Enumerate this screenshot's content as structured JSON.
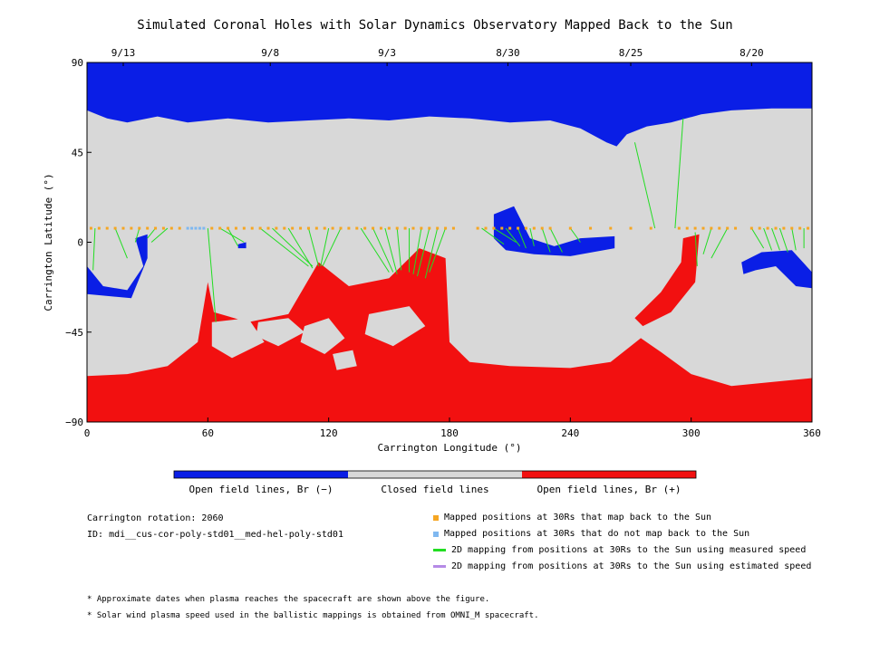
{
  "title": "Simulated Coronal Holes with Solar Dynamics Observatory Mapped Back to the Sun",
  "colors": {
    "open_negative": "#0a1ee6",
    "closed": "#d8d8d8",
    "open_positive": "#f21010",
    "mapped_dot": "#f5a623",
    "unmapped_dot": "#7fb8f0",
    "measured_line": "#22dd22",
    "estimated_line": "#b58ae6"
  },
  "colorbar": {
    "labels": [
      "Open field lines, Br (−)",
      "Closed field lines",
      "Open field lines, Br (+)"
    ]
  },
  "info": {
    "rotation": "Carrington rotation: 2060",
    "id": "ID: mdi__cus-cor-poly-std01__med-hel-poly-std01"
  },
  "legend": [
    {
      "marker": "dot",
      "color": "#f5a623",
      "label": "Mapped positions at 30Rs that map back to the Sun"
    },
    {
      "marker": "dot",
      "color": "#7fb8f0",
      "label": "Mapped positions at 30Rs that do not map back to the Sun"
    },
    {
      "marker": "line",
      "color": "#22dd22",
      "label": "2D mapping from positions at 30Rs to the Sun using measured speed"
    },
    {
      "marker": "line",
      "color": "#b58ae6",
      "label": "2D mapping from positions at 30Rs to the Sun using estimated speed"
    }
  ],
  "notes": [
    "* Approximate dates when plasma reaches the spacecraft are shown above the figure.",
    "* Solar wind plasma speed used in the ballistic mappings is obtained from OMNI_M spacecraft."
  ],
  "chart_data": {
    "type": "heatmap",
    "title": "Simulated Coronal Holes with Solar Dynamics Observatory Mapped Back to the Sun",
    "xlabel": "Carrington Longitude (°)",
    "ylabel": "Carrington Latitude (°)",
    "xlim": [
      0,
      360
    ],
    "ylim": [
      -90,
      90
    ],
    "x_ticks": [
      0,
      60,
      120,
      180,
      240,
      300,
      360
    ],
    "y_ticks": [
      90,
      45,
      0,
      -45,
      -90
    ],
    "y_tick_labels": [
      "90",
      "45",
      "0",
      "−45",
      "−90"
    ],
    "top_axis_dates": [
      {
        "label": "9/13",
        "lon": 18
      },
      {
        "label": "9/8",
        "lon": 91
      },
      {
        "label": "9/3",
        "lon": 149
      },
      {
        "label": "8/30",
        "lon": 209
      },
      {
        "label": "8/25",
        "lon": 270
      },
      {
        "label": "8/20",
        "lon": 330
      }
    ],
    "mapped_point_latitude": 7,
    "mapped_point_longitudes": [
      2,
      6,
      10,
      14,
      18,
      22,
      26,
      30,
      34,
      38,
      42,
      46,
      62,
      66,
      70,
      74,
      78,
      82,
      86,
      90,
      94,
      98,
      102,
      106,
      110,
      114,
      118,
      122,
      126,
      130,
      134,
      138,
      142,
      146,
      150,
      154,
      158,
      162,
      166,
      170,
      174,
      178,
      182,
      194,
      198,
      202,
      206,
      210,
      214,
      218,
      222,
      226,
      230,
      240,
      250,
      260,
      270,
      280,
      294,
      298,
      302,
      306,
      310,
      314,
      318,
      322,
      330,
      334,
      338,
      342,
      346,
      350,
      354,
      358
    ],
    "unmapped_point_longitudes": [
      50,
      52,
      54,
      56,
      58
    ],
    "mapping_lines_measured": [
      [
        4,
        7,
        3,
        -14
      ],
      [
        14,
        7,
        20,
        -8
      ],
      [
        26,
        7,
        24,
        0
      ],
      [
        34,
        7,
        30,
        2
      ],
      [
        40,
        7,
        32,
        0
      ],
      [
        60,
        7,
        64,
        -40
      ],
      [
        66,
        7,
        78,
        0
      ],
      [
        70,
        7,
        75,
        -2
      ],
      [
        86,
        7,
        110,
        -12
      ],
      [
        92,
        7,
        112,
        -12
      ],
      [
        100,
        7,
        112,
        -13
      ],
      [
        110,
        7,
        115,
        -12
      ],
      [
        120,
        7,
        116,
        -12
      ],
      [
        126,
        7,
        117,
        -12
      ],
      [
        136,
        7,
        150,
        -15
      ],
      [
        142,
        7,
        152,
        -15
      ],
      [
        148,
        7,
        154,
        -16
      ],
      [
        154,
        7,
        156,
        -14
      ],
      [
        160,
        7,
        160,
        -15
      ],
      [
        166,
        7,
        162,
        -16
      ],
      [
        170,
        7,
        164,
        -17
      ],
      [
        174,
        7,
        168,
        -18
      ],
      [
        178,
        7,
        170,
        -15
      ],
      [
        196,
        7,
        207,
        -1
      ],
      [
        202,
        7,
        213,
        0
      ],
      [
        208,
        7,
        215,
        -2
      ],
      [
        214,
        7,
        218,
        -3
      ],
      [
        220,
        7,
        222,
        -2
      ],
      [
        226,
        7,
        230,
        -5
      ],
      [
        230,
        7,
        236,
        -5
      ],
      [
        240,
        7,
        245,
        0
      ],
      [
        272,
        50,
        282,
        7
      ],
      [
        296,
        62,
        292,
        7
      ],
      [
        302,
        5,
        303,
        -12
      ],
      [
        310,
        7,
        306,
        -6
      ],
      [
        318,
        7,
        310,
        -8
      ],
      [
        330,
        7,
        336,
        -3
      ],
      [
        336,
        7,
        340,
        -4
      ],
      [
        340,
        7,
        344,
        -4
      ],
      [
        344,
        7,
        348,
        -5
      ],
      [
        350,
        7,
        352,
        -4
      ],
      [
        356,
        7,
        356,
        -3
      ]
    ]
  }
}
